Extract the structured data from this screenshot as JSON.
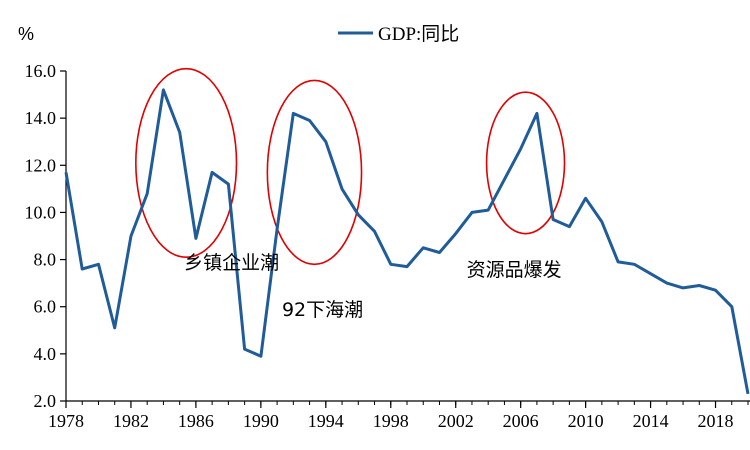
{
  "chart_data": {
    "type": "line",
    "title": "",
    "ylabel": "%",
    "xlabel": "",
    "ylim": [
      2.0,
      16.0
    ],
    "xlim": [
      1978,
      2020
    ],
    "y_ticks": [
      "2.0",
      "4.0",
      "6.0",
      "8.0",
      "10.0",
      "12.0",
      "14.0",
      "16.0"
    ],
    "y_tick_values": [
      2,
      4,
      6,
      8,
      10,
      12,
      14,
      16
    ],
    "x_ticks": [
      "1978",
      "1982",
      "1986",
      "1990",
      "1994",
      "1998",
      "2002",
      "2006",
      "2010",
      "2014",
      "2018"
    ],
    "x_tick_values": [
      1978,
      1982,
      1986,
      1990,
      1994,
      1998,
      2002,
      2006,
      2010,
      2014,
      2018
    ],
    "legend": {
      "position": "top-center",
      "entries": [
        "GDP:同比"
      ]
    },
    "grid": false,
    "series": [
      {
        "name": "GDP:同比",
        "color": "#1f5c99",
        "x": [
          1978,
          1979,
          1980,
          1981,
          1982,
          1983,
          1984,
          1985,
          1986,
          1987,
          1988,
          1989,
          1990,
          1991,
          1992,
          1993,
          1994,
          1995,
          1996,
          1997,
          1998,
          1999,
          2000,
          2001,
          2002,
          2003,
          2004,
          2005,
          2006,
          2007,
          2008,
          2009,
          2010,
          2011,
          2012,
          2013,
          2014,
          2015,
          2016,
          2017,
          2018,
          2019,
          2020
        ],
        "values": [
          11.7,
          7.6,
          7.8,
          5.1,
          9.0,
          10.8,
          15.2,
          13.4,
          8.9,
          11.7,
          11.2,
          4.2,
          3.9,
          9.3,
          14.2,
          13.9,
          13.0,
          11.0,
          9.9,
          9.2,
          7.8,
          7.7,
          8.5,
          8.3,
          9.1,
          10.0,
          10.1,
          11.4,
          12.7,
          14.2,
          9.7,
          9.4,
          10.6,
          9.6,
          7.9,
          7.8,
          7.4,
          7.0,
          6.8,
          6.9,
          6.7,
          6.0,
          2.3
        ]
      }
    ],
    "annotations": [
      {
        "text": "乡镇企业潮",
        "x": 1988.2,
        "y": 7.6,
        "color": "#000000"
      },
      {
        "text": "92下海潮",
        "x": 1993.8,
        "y": 5.6,
        "color": "#000000"
      },
      {
        "text": "资源品爆发",
        "x": 2005.6,
        "y": 7.3,
        "color": "#000000"
      }
    ],
    "highlight_ellipses": [
      {
        "label": "乡镇企业潮",
        "cx": 1985.4,
        "cy": 12.1,
        "rx": 3.1,
        "ry": 4.0,
        "color": "#e00000"
      },
      {
        "label": "92下海潮",
        "cx": 1993.3,
        "cy": 11.7,
        "rx": 2.9,
        "ry": 3.9,
        "color": "#e00000"
      },
      {
        "label": "资源品爆发",
        "cx": 2006.3,
        "cy": 12.1,
        "rx": 2.4,
        "ry": 3.0,
        "color": "#e00000"
      }
    ]
  }
}
